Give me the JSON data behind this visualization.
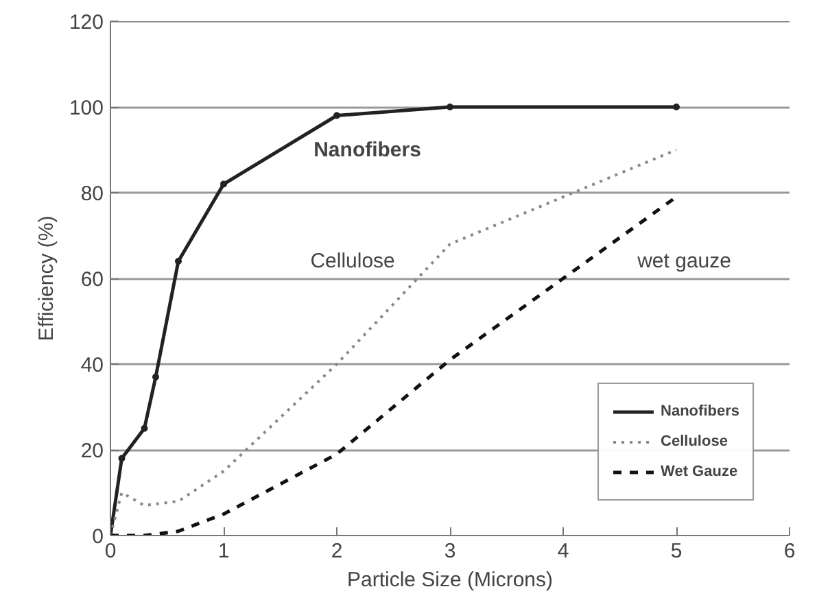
{
  "chart_data": {
    "type": "line",
    "xlabel": "Particle Size (Microns)",
    "ylabel": "Efficiency (%)",
    "xlim": [
      0,
      6
    ],
    "ylim": [
      0,
      120
    ],
    "xticks": [
      0,
      1,
      2,
      3,
      4,
      5,
      6
    ],
    "yticks": [
      0,
      20,
      40,
      60,
      80,
      100,
      120
    ],
    "grid": "y",
    "legend": "bottom right",
    "series": [
      {
        "name": "Nanofibers",
        "color": "#222222",
        "line_style": "solid",
        "marker": "circle",
        "x": [
          0,
          0.1,
          0.3,
          0.4,
          0.6,
          1,
          2,
          3,
          5
        ],
        "values": [
          0,
          18,
          25,
          37,
          64,
          82,
          98,
          100,
          100
        ]
      },
      {
        "name": "Cellulose",
        "color": "#888888",
        "line_style": "dotted",
        "marker": "none",
        "x": [
          0,
          0.1,
          0.3,
          0.6,
          1,
          2,
          3,
          5
        ],
        "values": [
          0,
          10,
          7,
          8,
          15,
          40,
          68,
          90
        ]
      },
      {
        "name": "Wet Gauze",
        "color": "#111111",
        "line_style": "dashed",
        "marker": "none",
        "x": [
          0,
          0.3,
          0.6,
          1,
          2,
          3,
          4,
          5
        ],
        "values": [
          0,
          0,
          1,
          5,
          19,
          41,
          60,
          79
        ]
      }
    ],
    "annotations": [
      "Nanofibers",
      "Cellulose",
      "wet gauze"
    ]
  }
}
